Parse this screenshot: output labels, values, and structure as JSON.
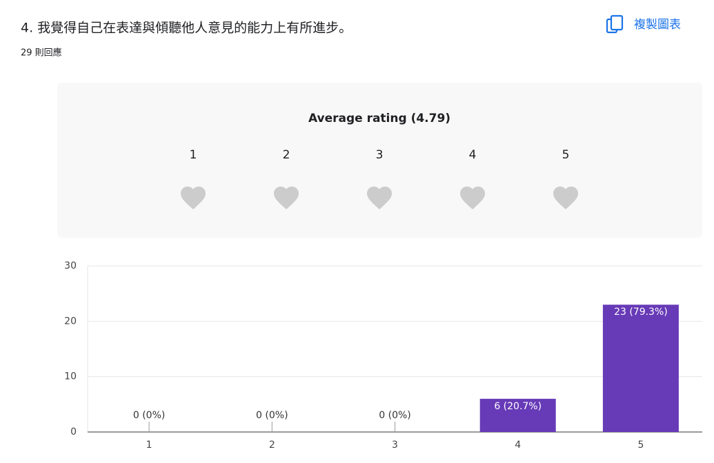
{
  "header": {
    "title": "4. 我覺得自己在表達與傾聽他人意見的能力上有所進步。",
    "responses": "29 則回應",
    "copy_button": "複製圖表"
  },
  "rating": {
    "title": "Average rating (4.79)",
    "average": 4.79,
    "scale": [
      "1",
      "2",
      "3",
      "4",
      "5"
    ]
  },
  "chart_data": {
    "type": "bar",
    "categories": [
      "1",
      "2",
      "3",
      "4",
      "5"
    ],
    "values": [
      0,
      0,
      0,
      6,
      23
    ],
    "value_labels": [
      "0 (0%)",
      "0 (0%)",
      "0 (0%)",
      "6 (20.7%)",
      "23 (79.3%)"
    ],
    "color": "#673ab7",
    "ylim": [
      0,
      30
    ],
    "yticks": [
      0,
      10,
      20,
      30
    ],
    "grid": true
  }
}
